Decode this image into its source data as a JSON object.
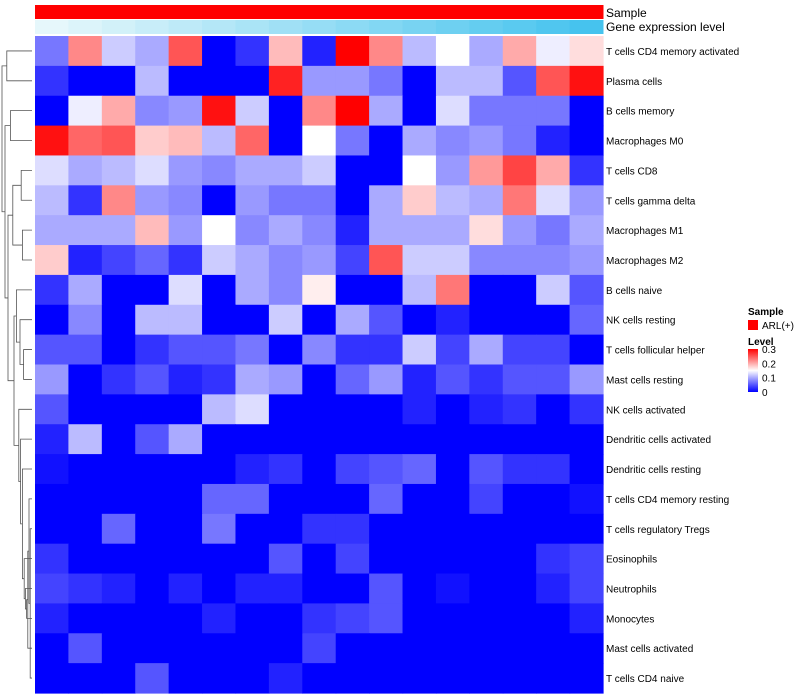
{
  "chart_data": {
    "type": "heatmap",
    "title": "",
    "annotation_tracks": [
      "Sample",
      "Gene expression level"
    ],
    "sample_color": "#ff0000",
    "expression_gradient": [
      "#e6f7fb",
      "#46c3ee"
    ],
    "columns": 17,
    "rows": [
      "T cells CD4 memory activated",
      "Plasma cells",
      "B cells memory",
      "Macrophages M0",
      "T cells CD8",
      "T cells gamma delta",
      "Macrophages M1",
      "Macrophages M2",
      "B cells naive",
      "NK cells resting",
      "T cells follicular helper",
      "Mast cells resting",
      "NK cells activated",
      "Dendritic cells activated",
      "Dendritic cells resting",
      "T cells CD4 memory resting",
      "T cells regulatory  Tregs",
      "Eosinophils",
      "Neutrophils",
      "Monocytes",
      "Mast cells activated",
      "T cells CD4 naive"
    ],
    "values": [
      [
        0.07,
        0.22,
        0.12,
        0.1,
        0.25,
        0.0,
        0.03,
        0.19,
        0.02,
        0.3,
        0.22,
        0.11,
        0.15,
        0.1,
        0.2,
        0.14,
        0.17
      ],
      [
        0.03,
        0.0,
        0.0,
        0.11,
        0.0,
        0.0,
        0.0,
        0.28,
        0.09,
        0.09,
        0.07,
        0.0,
        0.11,
        0.11,
        0.05,
        0.25,
        0.29
      ],
      [
        0.0,
        0.14,
        0.2,
        0.08,
        0.09,
        0.29,
        0.12,
        0.0,
        0.22,
        0.3,
        0.1,
        0.0,
        0.13,
        0.07,
        0.07,
        0.07,
        0.0
      ],
      [
        0.29,
        0.24,
        0.25,
        0.18,
        0.19,
        0.11,
        0.24,
        0.0,
        0.15,
        0.07,
        0.0,
        0.1,
        0.08,
        0.09,
        0.07,
        0.02,
        0.0
      ],
      [
        0.13,
        0.1,
        0.11,
        0.13,
        0.09,
        0.08,
        0.1,
        0.1,
        0.12,
        0.0,
        0.0,
        0.15,
        0.09,
        0.21,
        0.26,
        0.2,
        0.03
      ],
      [
        0.11,
        0.03,
        0.22,
        0.09,
        0.08,
        0.0,
        0.09,
        0.07,
        0.07,
        0.0,
        0.1,
        0.18,
        0.11,
        0.1,
        0.23,
        0.13,
        0.09
      ],
      [
        0.1,
        0.1,
        0.1,
        0.19,
        0.09,
        0.15,
        0.08,
        0.1,
        0.08,
        0.02,
        0.1,
        0.1,
        0.1,
        0.17,
        0.09,
        0.07,
        0.1
      ],
      [
        0.18,
        0.02,
        0.04,
        0.06,
        0.03,
        0.12,
        0.1,
        0.08,
        0.09,
        0.04,
        0.25,
        0.12,
        0.12,
        0.08,
        0.08,
        0.08,
        0.09
      ],
      [
        0.03,
        0.1,
        0.0,
        0.0,
        0.13,
        0.0,
        0.1,
        0.08,
        0.16,
        0.0,
        0.0,
        0.11,
        0.23,
        0.0,
        0.0,
        0.12,
        0.05
      ],
      [
        0.0,
        0.08,
        0.0,
        0.11,
        0.11,
        0.0,
        0.0,
        0.12,
        0.0,
        0.1,
        0.05,
        0.0,
        0.02,
        0.0,
        0.0,
        0.0,
        0.06
      ],
      [
        0.05,
        0.05,
        0.0,
        0.03,
        0.05,
        0.05,
        0.07,
        0.0,
        0.08,
        0.03,
        0.03,
        0.12,
        0.04,
        0.1,
        0.04,
        0.04,
        0.0
      ],
      [
        0.09,
        0.0,
        0.03,
        0.05,
        0.02,
        0.03,
        0.1,
        0.09,
        0.0,
        0.06,
        0.09,
        0.02,
        0.05,
        0.03,
        0.05,
        0.05,
        0.09
      ],
      [
        0.05,
        0.0,
        0.0,
        0.0,
        0.0,
        0.11,
        0.13,
        0.0,
        0.0,
        0.0,
        0.0,
        0.02,
        0.0,
        0.02,
        0.03,
        0.0,
        0.03
      ],
      [
        0.02,
        0.11,
        0.0,
        0.05,
        0.1,
        0.0,
        0.0,
        0.0,
        0.0,
        0.0,
        0.0,
        0.0,
        0.0,
        0.0,
        0.0,
        0.0,
        0.0
      ],
      [
        0.01,
        0.0,
        0.0,
        0.0,
        0.0,
        0.0,
        0.02,
        0.03,
        0.0,
        0.04,
        0.05,
        0.06,
        0.0,
        0.05,
        0.03,
        0.03,
        0.0
      ],
      [
        0.0,
        0.0,
        0.0,
        0.0,
        0.0,
        0.06,
        0.06,
        0.0,
        0.0,
        0.0,
        0.06,
        0.0,
        0.0,
        0.04,
        0.0,
        0.0,
        0.01
      ],
      [
        0.0,
        0.0,
        0.06,
        0.0,
        0.0,
        0.07,
        0.0,
        0.0,
        0.03,
        0.03,
        0.0,
        0.0,
        0.0,
        0.0,
        0.0,
        0.0,
        0.0
      ],
      [
        0.03,
        0.0,
        0.0,
        0.0,
        0.0,
        0.0,
        0.0,
        0.05,
        0.0,
        0.04,
        0.0,
        0.0,
        0.0,
        0.0,
        0.0,
        0.03,
        0.04
      ],
      [
        0.04,
        0.03,
        0.02,
        0.0,
        0.02,
        0.0,
        0.02,
        0.02,
        0.0,
        0.0,
        0.05,
        0.0,
        0.01,
        0.0,
        0.0,
        0.02,
        0.04
      ],
      [
        0.02,
        0.0,
        0.0,
        0.0,
        0.0,
        0.02,
        0.0,
        0.0,
        0.03,
        0.04,
        0.05,
        0.0,
        0.0,
        0.0,
        0.0,
        0.0,
        0.02
      ],
      [
        0.0,
        0.05,
        0.0,
        0.0,
        0.0,
        0.0,
        0.0,
        0.0,
        0.04,
        0.0,
        0.0,
        0.0,
        0.0,
        0.0,
        0.0,
        0.0,
        0.0
      ],
      [
        0.0,
        0.0,
        0.0,
        0.05,
        0.0,
        0.0,
        0.0,
        0.02,
        0.0,
        0.0,
        0.0,
        0.0,
        0.0,
        0.0,
        0.0,
        0.0,
        0.0
      ]
    ],
    "color_scale": {
      "min": 0,
      "mid": 0.15,
      "max": 0.3,
      "low": "#0000ff",
      "mid_color": "#ffffff",
      "high": "#ff0000"
    },
    "legend": {
      "position": "right",
      "sample_title": "Sample",
      "sample_label": "ARL(+)",
      "level_title": "Level",
      "level_ticks": [
        {
          "value": 0.3,
          "label": "0.3"
        },
        {
          "value": 0.2,
          "label": "0.2"
        },
        {
          "value": 0.1,
          "label": "0.1"
        },
        {
          "value": 0,
          "label": "0"
        }
      ]
    },
    "dendrogram": {
      "side": "left",
      "merges": [
        [
          -17,
          -22,
          0.3
        ],
        [
          -16,
          1,
          0.5
        ],
        [
          -21,
          2,
          0.7
        ],
        [
          -20,
          3,
          0.9
        ],
        [
          -19,
          4,
          1.1
        ],
        [
          -18,
          5,
          1.3
        ],
        [
          -15,
          6,
          1.6
        ],
        [
          -14,
          7,
          1.9
        ],
        [
          -13,
          8,
          2.2
        ],
        [
          -11,
          -12,
          1.4
        ],
        [
          -10,
          10,
          2.0
        ],
        [
          -9,
          11,
          2.6
        ],
        [
          9,
          12,
          3.0
        ],
        [
          -7,
          -8,
          1.6
        ],
        [
          -5,
          -6,
          1.8
        ],
        [
          14,
          15,
          3.2
        ],
        [
          16,
          13,
          4.0
        ],
        [
          -3,
          -4,
          3.6
        ],
        [
          17,
          18,
          4.5
        ],
        [
          -1,
          -2,
          4.2
        ],
        [
          19,
          20,
          5.0
        ]
      ]
    }
  }
}
